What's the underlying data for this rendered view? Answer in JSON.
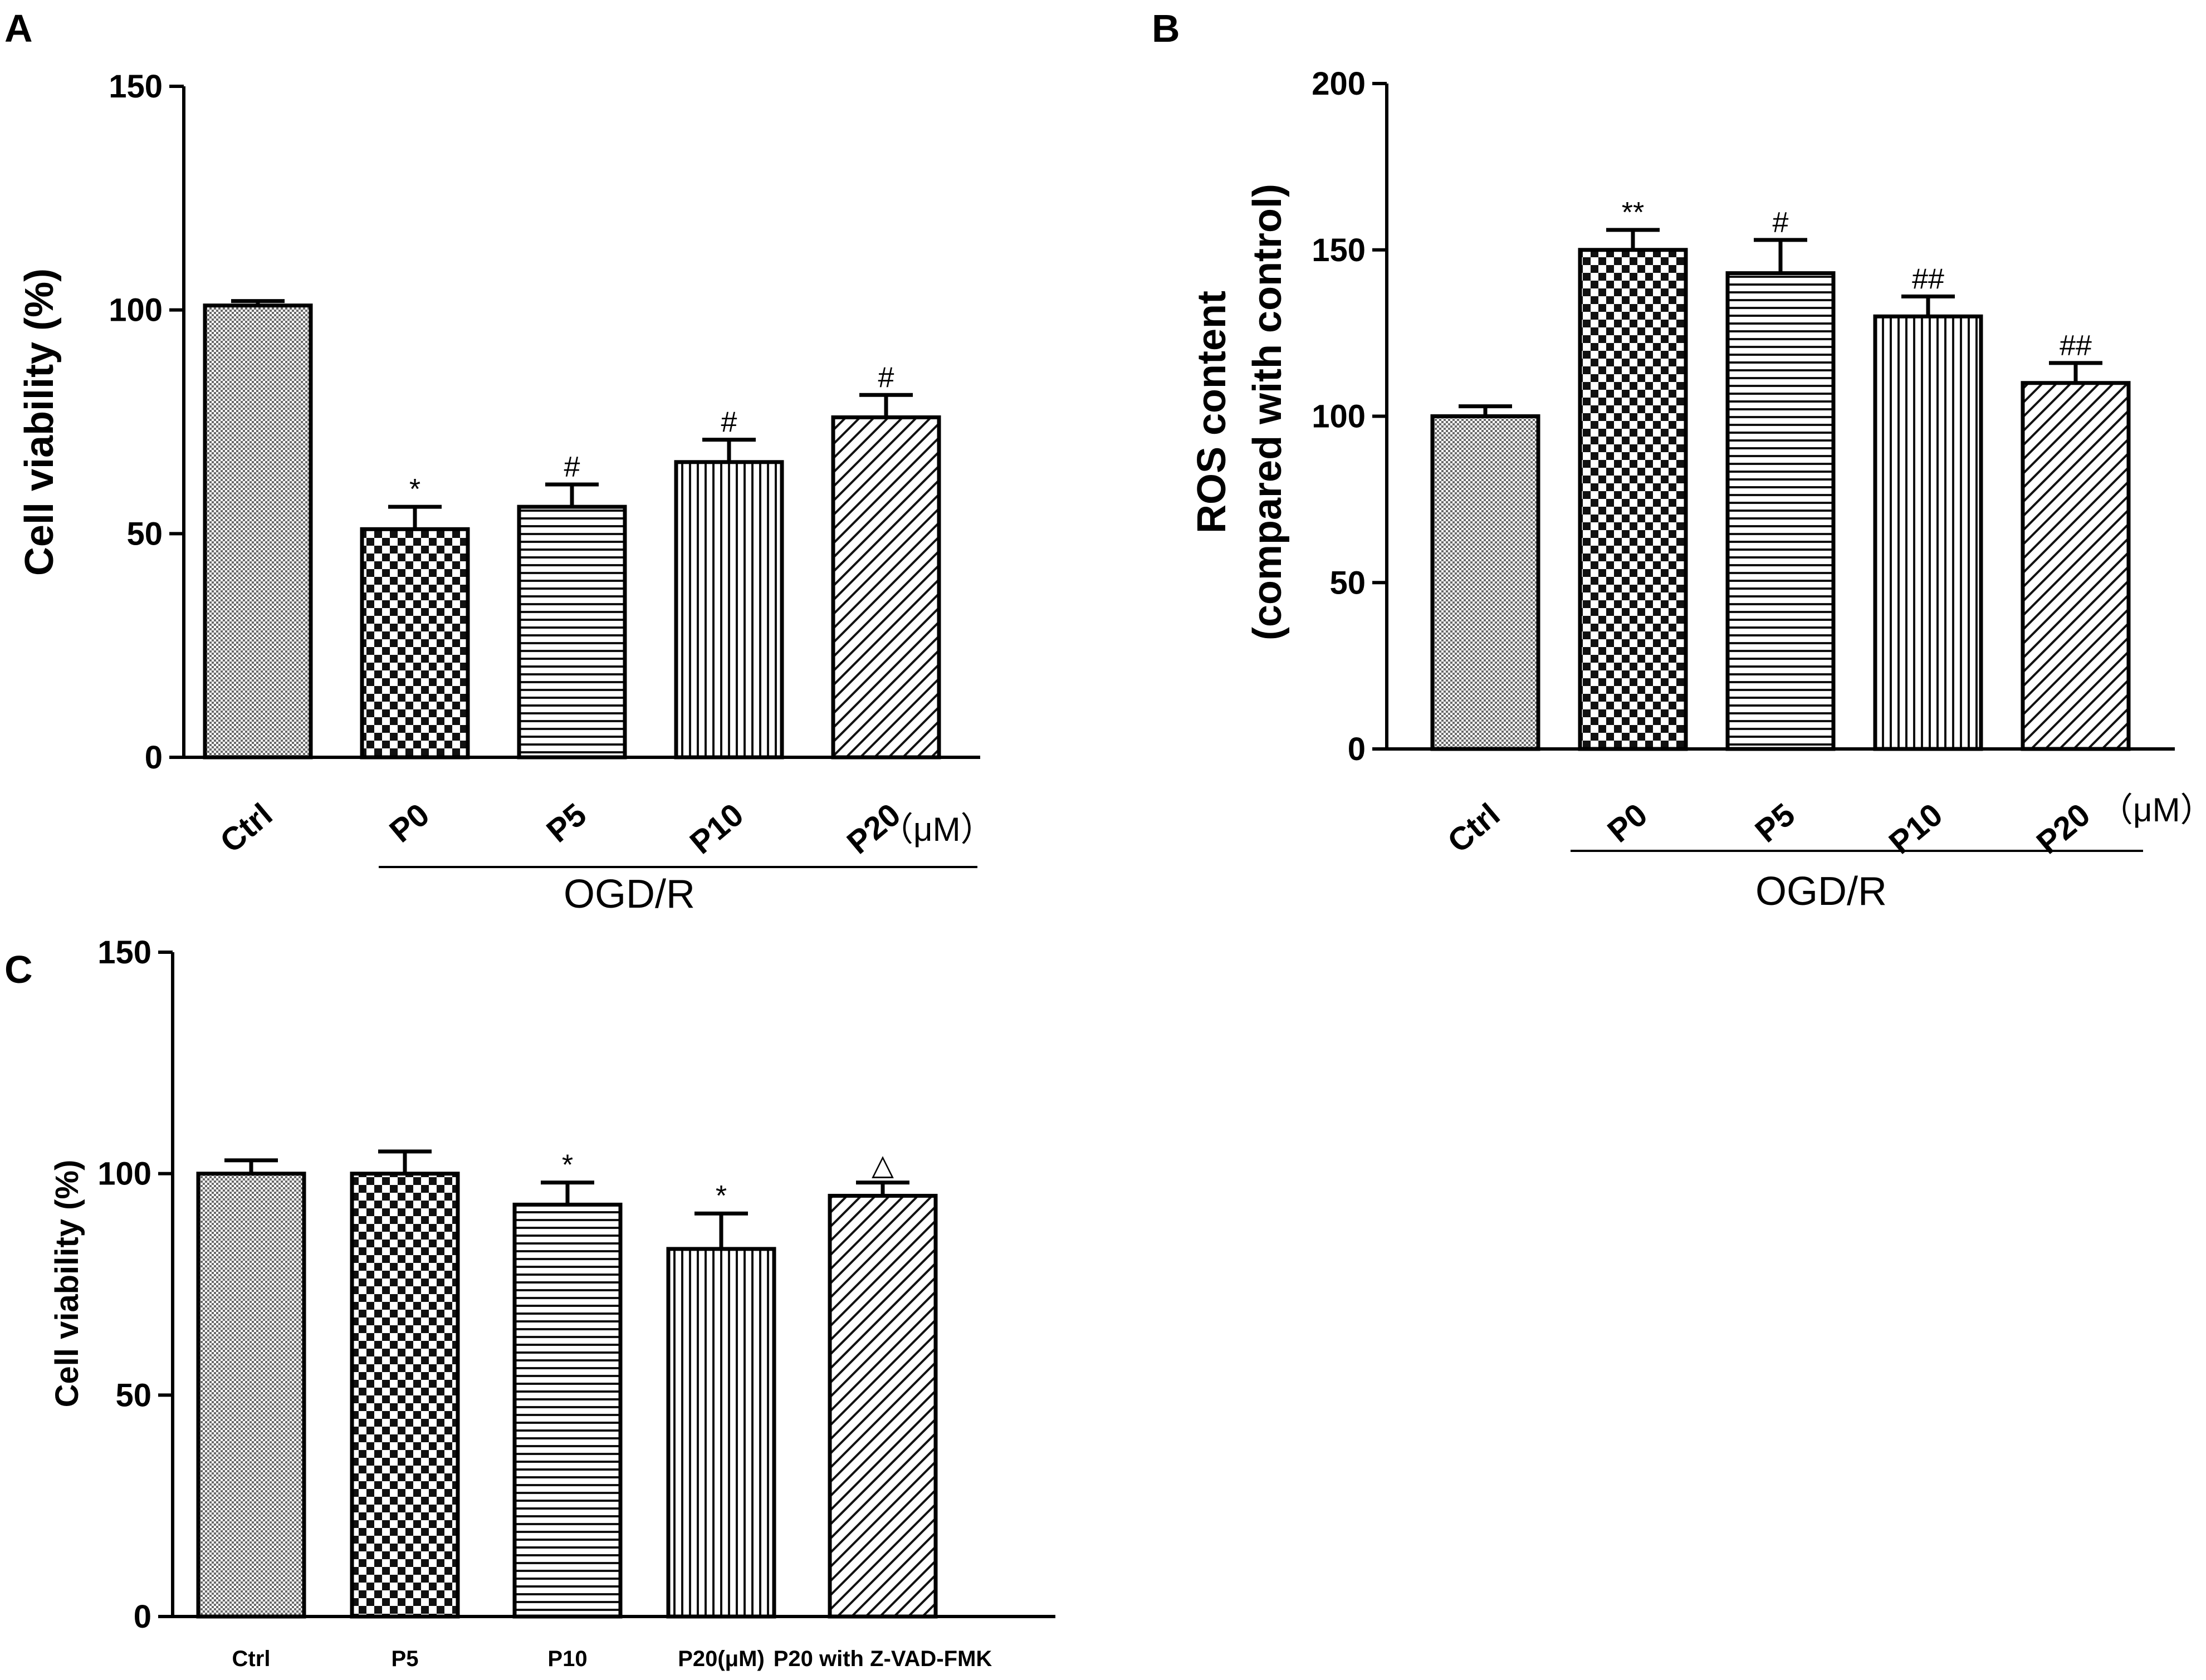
{
  "chart_data": [
    {
      "panel": "A",
      "type": "bar",
      "title": "",
      "ylabel": "Cell viability (%)",
      "xlabel": "",
      "ylim": [
        0,
        150
      ],
      "yticks": [
        "0",
        "50",
        "100",
        "150"
      ],
      "categories": [
        "Ctrl",
        "P0",
        "P5",
        "P10",
        "P20"
      ],
      "values": [
        101,
        51,
        56,
        66,
        76
      ],
      "errors": [
        1,
        5,
        5,
        5,
        5
      ],
      "patterns": [
        "fine",
        "checker",
        "hlines",
        "vlines",
        "diag"
      ],
      "annotations": [
        "",
        "*",
        "#",
        "#",
        "#"
      ],
      "group_label": "OGD/R",
      "unit_label": "（μM）"
    },
    {
      "panel": "B",
      "type": "bar",
      "title": "",
      "ylabel_line1": "ROS content",
      "ylabel_line2": "(compared with control)",
      "xlabel": "",
      "ylim": [
        0,
        200
      ],
      "yticks": [
        "0",
        "50",
        "100",
        "150",
        "200"
      ],
      "categories": [
        "Ctrl",
        "P0",
        "P5",
        "P10",
        "P20"
      ],
      "values": [
        100,
        150,
        143,
        130,
        110
      ],
      "errors": [
        3,
        6,
        10,
        6,
        6
      ],
      "patterns": [
        "fine",
        "checker",
        "hlines",
        "vlines",
        "diag"
      ],
      "annotations": [
        "",
        "**",
        "#",
        "##",
        "##"
      ],
      "group_label": "OGD/R",
      "unit_label": "（μM）"
    },
    {
      "panel": "C",
      "type": "bar",
      "title": "",
      "ylabel": "Cell viability (%)",
      "xlabel": "",
      "ylim": [
        0,
        150
      ],
      "yticks": [
        "0",
        "50",
        "100",
        "150"
      ],
      "categories": [
        "Ctrl",
        "P5",
        "P10",
        "P20(μM)",
        "P20 with Z-VAD-FMK"
      ],
      "values": [
        100,
        100,
        93,
        83,
        95
      ],
      "errors": [
        3,
        5,
        5,
        8,
        3
      ],
      "patterns": [
        "fine",
        "checker",
        "hlines",
        "vlines",
        "diag"
      ],
      "annotations": [
        "",
        "",
        "*",
        "*",
        "△"
      ]
    }
  ]
}
